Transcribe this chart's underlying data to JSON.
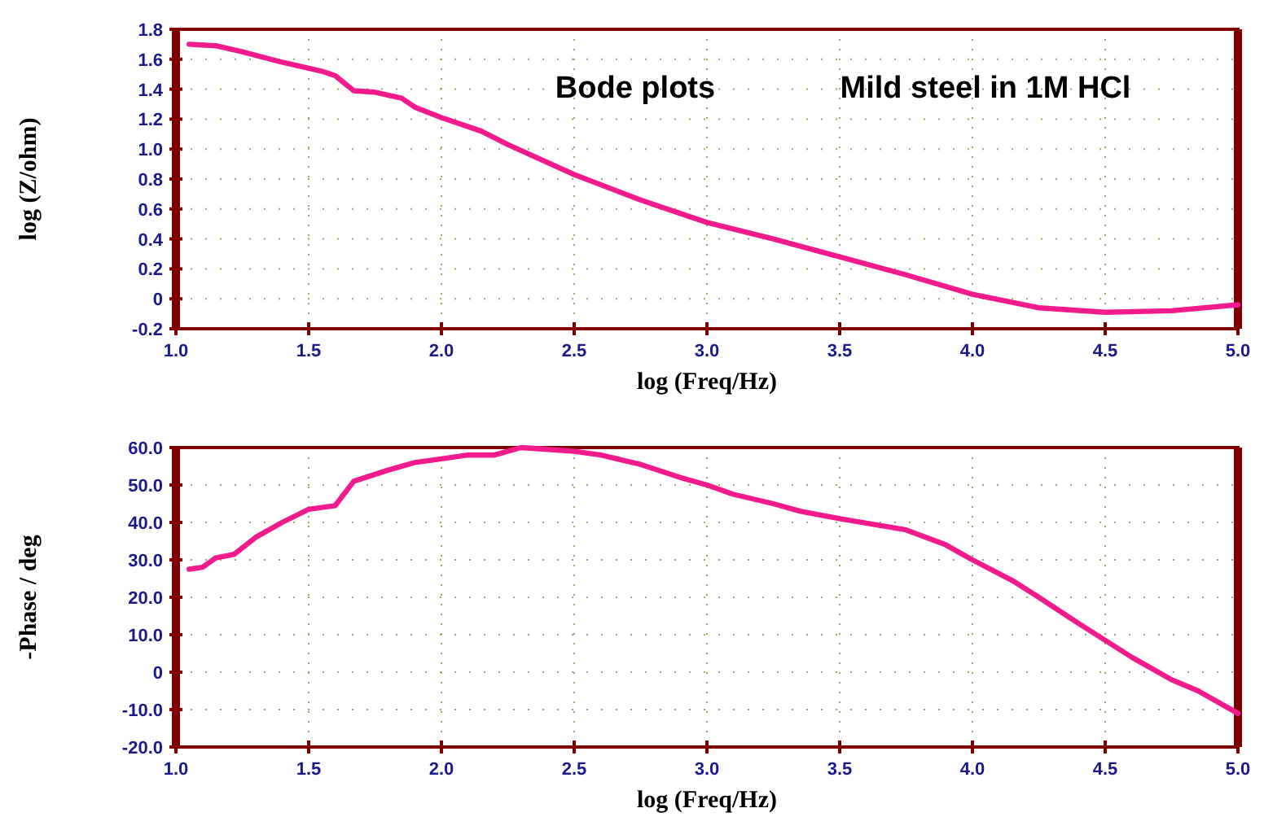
{
  "chart_data": [
    {
      "type": "line",
      "xlabel": "log (Freq/Hz)",
      "ylabel": "log (Z/ohm)",
      "annotations": [
        "Bode plots",
        "Mild steel in 1M HCl"
      ],
      "grid": true,
      "xlim": [
        1,
        5
      ],
      "ylim": [
        -0.2,
        1.8
      ],
      "xticks": [
        {
          "value": 1,
          "label": "1.0"
        },
        1.5,
        {
          "value": 2,
          "label": "2.0"
        },
        2.5,
        {
          "value": 3,
          "label": "3.0"
        },
        3.5,
        {
          "value": 4,
          "label": "4.0"
        },
        4.5,
        {
          "value": 5,
          "label": "5.0"
        }
      ],
      "yticks": [
        -0.2,
        0,
        0.2,
        0.4,
        0.6,
        0.8,
        {
          "value": 1,
          "label": "1.0"
        },
        1.2,
        1.4,
        1.6,
        1.8
      ],
      "series": [
        {
          "color": "#f21a8c",
          "x": [
            1.05,
            1.15,
            1.25,
            1.4,
            1.55,
            1.6,
            1.67,
            1.75,
            1.85,
            1.9,
            2.0,
            2.15,
            2.25,
            2.5,
            2.75,
            3.0,
            3.25,
            3.5,
            3.75,
            4.0,
            4.25,
            4.5,
            4.75,
            5.0
          ],
          "values": [
            1.7,
            1.69,
            1.65,
            1.58,
            1.52,
            1.49,
            1.39,
            1.38,
            1.34,
            1.28,
            1.21,
            1.12,
            1.03,
            0.83,
            0.66,
            0.51,
            0.4,
            0.28,
            0.16,
            0.03,
            -0.06,
            -0.09,
            -0.08,
            -0.04
          ]
        }
      ]
    },
    {
      "type": "line",
      "xlabel": "log (Freq/Hz)",
      "ylabel": "-Phase / deg",
      "grid": true,
      "xlim": [
        1,
        5
      ],
      "ylim": [
        -20,
        60
      ],
      "xticks": [
        {
          "value": 1,
          "label": "1.0"
        },
        1.5,
        {
          "value": 2,
          "label": "2.0"
        },
        2.5,
        {
          "value": 3,
          "label": "3.0"
        },
        3.5,
        {
          "value": 4,
          "label": "4.0"
        },
        4.5,
        {
          "value": 5,
          "label": "5.0"
        }
      ],
      "yticks": [
        {
          "value": -20,
          "label": "-20.0"
        },
        {
          "value": -10,
          "label": "-10.0"
        },
        0,
        {
          "value": 10,
          "label": "10.0"
        },
        {
          "value": 20,
          "label": "20.0"
        },
        {
          "value": 30,
          "label": "30.0"
        },
        {
          "value": 40,
          "label": "40.0"
        },
        {
          "value": 50,
          "label": "50.0"
        },
        {
          "value": 60,
          "label": "60.0"
        }
      ],
      "series": [
        {
          "color": "#f21a8c",
          "x": [
            1.05,
            1.1,
            1.15,
            1.22,
            1.3,
            1.4,
            1.5,
            1.6,
            1.67,
            1.8,
            1.9,
            2.0,
            2.1,
            2.2,
            2.3,
            2.4,
            2.5,
            2.6,
            2.75,
            2.9,
            3.0,
            3.1,
            3.25,
            3.35,
            3.5,
            3.75,
            3.9,
            4.0,
            4.15,
            4.25,
            4.4,
            4.5,
            4.6,
            4.75,
            4.85,
            5.0
          ],
          "values": [
            27.5,
            28,
            30.5,
            31.5,
            36,
            40,
            43.5,
            44.5,
            51,
            54,
            56,
            57,
            58,
            58,
            60,
            59.5,
            59,
            58,
            55.5,
            52,
            50,
            47.5,
            45,
            43,
            41,
            38,
            34,
            30,
            24.5,
            20,
            13,
            8.5,
            4,
            -2,
            -5,
            -11
          ]
        }
      ]
    }
  ]
}
